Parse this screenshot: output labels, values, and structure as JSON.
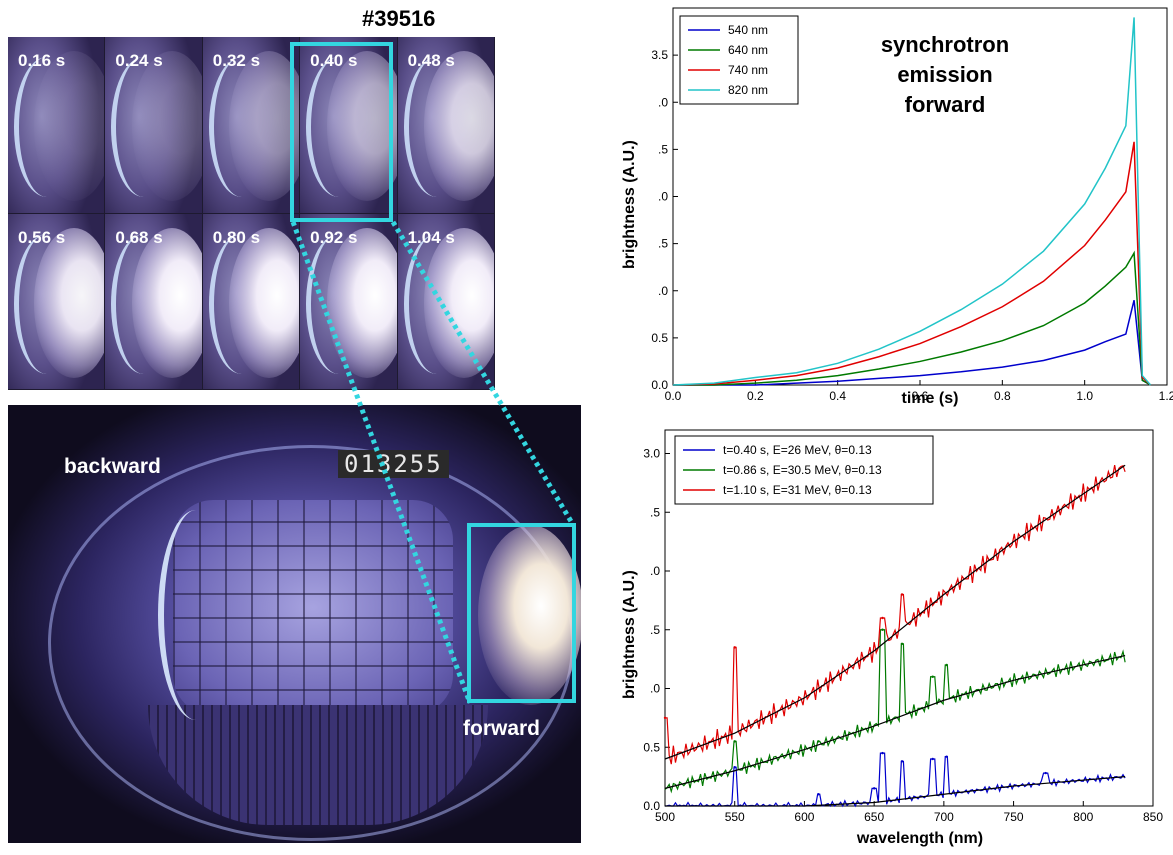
{
  "shot_label": "#39516",
  "frames": [
    {
      "label": "0.16 s",
      "glow": 0.15
    },
    {
      "label": "0.24 s",
      "glow": 0.22
    },
    {
      "label": "0.32 s",
      "glow": 0.45
    },
    {
      "label": "0.40 s",
      "glow": 0.6
    },
    {
      "label": "0.48 s",
      "glow": 0.8
    },
    {
      "label": "0.56 s",
      "glow": 0.95
    },
    {
      "label": "0.68 s",
      "glow": 1.0
    },
    {
      "label": "0.80 s",
      "glow": 1.0
    },
    {
      "label": "0.92 s",
      "glow": 1.0
    },
    {
      "label": "1.04 s",
      "glow": 1.0
    }
  ],
  "camera": {
    "counter": "013255",
    "backward_label": "backward",
    "forward_label": "forward"
  },
  "colors": {
    "highlight": "#33d6e0",
    "blue": "#0000cc",
    "green": "#007a00",
    "red": "#e00000",
    "cyan": "#22c4c8"
  },
  "chart_data": [
    {
      "type": "line",
      "annotation": [
        "synchrotron",
        "emission",
        "forward"
      ],
      "xlabel": "time (s)",
      "ylabel": "brightness (A.U.)",
      "xlim": [
        0.0,
        1.2
      ],
      "ylim": [
        0.0,
        4.0
      ],
      "xticks": [
        "0.0",
        "0.2",
        "0.4",
        "0.6",
        "0.8",
        "1.0",
        "1.2"
      ],
      "yticks": [
        {
          "v": 0.0,
          "t": "0.0"
        },
        {
          "v": 0.5,
          "t": "0.5"
        },
        {
          "v": 1.0,
          "t": ".0"
        },
        {
          "v": 1.5,
          "t": ".5"
        },
        {
          "v": 2.0,
          "t": ".0"
        },
        {
          "v": 2.5,
          "t": ".5"
        },
        {
          "v": 3.0,
          "t": ".0"
        },
        {
          "v": 3.5,
          "t": "3.5"
        }
      ],
      "legend": "top-left",
      "x": [
        0.0,
        0.1,
        0.2,
        0.3,
        0.4,
        0.5,
        0.6,
        0.7,
        0.8,
        0.9,
        1.0,
        1.05,
        1.1,
        1.12,
        1.14,
        1.16
      ],
      "series": [
        {
          "name": "540 nm",
          "color": "#0000cc",
          "values": [
            0.0,
            0.0,
            0.0,
            0.02,
            0.04,
            0.07,
            0.1,
            0.14,
            0.19,
            0.26,
            0.37,
            0.46,
            0.54,
            0.9,
            0.05,
            0.0
          ]
        },
        {
          "name": "640 nm",
          "color": "#007a00",
          "values": [
            0.0,
            0.0,
            0.02,
            0.05,
            0.1,
            0.17,
            0.25,
            0.35,
            0.47,
            0.63,
            0.87,
            1.05,
            1.25,
            1.4,
            0.05,
            0.0
          ]
        },
        {
          "name": "740 nm",
          "color": "#e00000",
          "values": [
            0.0,
            0.01,
            0.05,
            0.1,
            0.18,
            0.3,
            0.44,
            0.62,
            0.83,
            1.1,
            1.48,
            1.75,
            2.05,
            2.58,
            0.08,
            0.0
          ]
        },
        {
          "name": "820 nm",
          "color": "#22c4c8",
          "values": [
            0.0,
            0.02,
            0.08,
            0.13,
            0.23,
            0.38,
            0.57,
            0.8,
            1.07,
            1.42,
            1.92,
            2.3,
            2.75,
            3.9,
            0.1,
            0.0
          ]
        }
      ]
    },
    {
      "type": "line",
      "xlabel": "wavelength (nm)",
      "ylabel": "brightness (A.U.)",
      "xlim": [
        500,
        850
      ],
      "ylim": [
        0.0,
        3.2
      ],
      "xticks": [
        "500",
        "550",
        "600",
        "650",
        "700",
        "750",
        "800",
        "850"
      ],
      "yticks": [
        {
          "v": 0.0,
          "t": "0.0"
        },
        {
          "v": 0.5,
          "t": "0.5"
        },
        {
          "v": 1.0,
          "t": ".0"
        },
        {
          "v": 1.5,
          "t": ".5"
        },
        {
          "v": 2.0,
          "t": ".0"
        },
        {
          "v": 2.5,
          "t": ".5"
        },
        {
          "v": 3.0,
          "t": "3.0"
        }
      ],
      "legend": "top-left",
      "series": [
        {
          "name": "t=0.40 s, E=26 MeV, θ=0.13",
          "color": "#0000cc",
          "fit": [
            [
              500,
              0.0
            ],
            [
              600,
              0.0
            ],
            [
              650,
              0.03
            ],
            [
              700,
              0.1
            ],
            [
              750,
              0.17
            ],
            [
              830,
              0.25
            ]
          ],
          "peaks": [
            [
              550,
              0.33
            ],
            [
              610,
              0.1
            ],
            [
              650,
              0.15
            ],
            [
              656,
              0.45
            ],
            [
              670,
              0.38
            ],
            [
              692,
              0.4
            ],
            [
              702,
              0.42
            ],
            [
              773,
              0.28
            ]
          ]
        },
        {
          "name": "t=0.86 s, E=30.5 MeV, θ=0.13",
          "color": "#007a00",
          "fit": [
            [
              500,
              0.15
            ],
            [
              550,
              0.3
            ],
            [
              600,
              0.48
            ],
            [
              650,
              0.68
            ],
            [
              700,
              0.9
            ],
            [
              750,
              1.07
            ],
            [
              830,
              1.28
            ]
          ],
          "peaks": [
            [
              550,
              0.55
            ],
            [
              610,
              0.55
            ],
            [
              656,
              1.5
            ],
            [
              670,
              1.38
            ],
            [
              692,
              1.1
            ],
            [
              702,
              1.2
            ]
          ]
        },
        {
          "name": "t=1.10 s, E=31 MeV, θ=0.13",
          "color": "#e00000",
          "fit": [
            [
              500,
              0.4
            ],
            [
              550,
              0.62
            ],
            [
              600,
              0.92
            ],
            [
              650,
              1.32
            ],
            [
              700,
              1.8
            ],
            [
              750,
              2.25
            ],
            [
              830,
              2.9
            ]
          ],
          "peaks": [
            [
              500,
              0.75
            ],
            [
              550,
              1.35
            ],
            [
              656,
              1.6
            ],
            [
              670,
              1.8
            ]
          ]
        }
      ]
    }
  ]
}
